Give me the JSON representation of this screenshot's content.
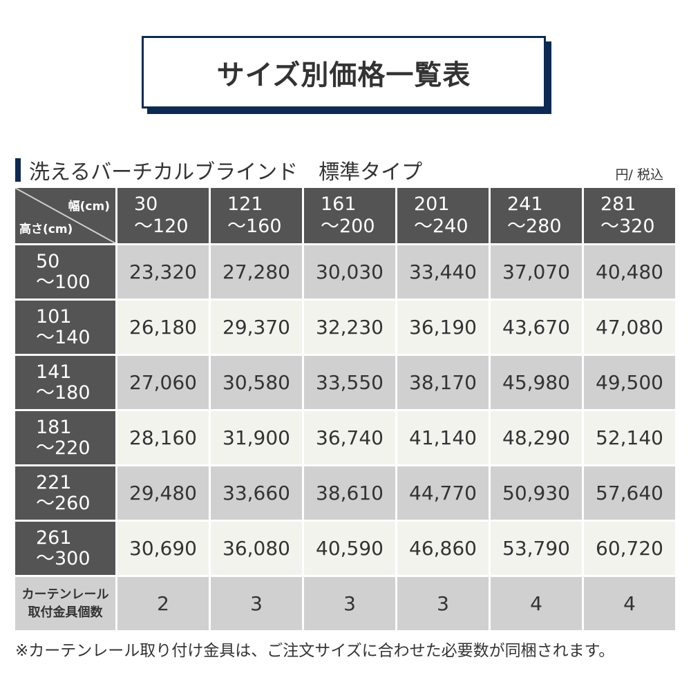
{
  "title": "サイズ別価格一覧表",
  "subtitle": "洗えるバーチカルブラインド　標準タイプ",
  "unit": "円/ 税込",
  "corner": {
    "width_label": "幅(cm)",
    "height_label": "高さ(cm)"
  },
  "columns": [
    [
      "30",
      "～120"
    ],
    [
      "121",
      "～160"
    ],
    [
      "161",
      "～200"
    ],
    [
      "201",
      "～240"
    ],
    [
      "241",
      "～280"
    ],
    [
      "281",
      "～320"
    ]
  ],
  "rows": [
    {
      "h": [
        "50",
        "～100"
      ],
      "prices": [
        "23,320",
        "27,280",
        "30,030",
        "33,440",
        "37,070",
        "40,480"
      ]
    },
    {
      "h": [
        "101",
        "～140"
      ],
      "prices": [
        "26,180",
        "29,370",
        "32,230",
        "36,190",
        "43,670",
        "47,080"
      ]
    },
    {
      "h": [
        "141",
        "～180"
      ],
      "prices": [
        "27,060",
        "30,580",
        "33,550",
        "38,170",
        "45,980",
        "49,500"
      ]
    },
    {
      "h": [
        "181",
        "～220"
      ],
      "prices": [
        "28,160",
        "31,900",
        "36,740",
        "41,140",
        "48,290",
        "52,140"
      ]
    },
    {
      "h": [
        "221",
        "～260"
      ],
      "prices": [
        "29,480",
        "33,660",
        "38,610",
        "44,770",
        "50,930",
        "57,640"
      ]
    },
    {
      "h": [
        "261",
        "～300"
      ],
      "prices": [
        "30,690",
        "36,080",
        "40,590",
        "46,860",
        "53,790",
        "60,720"
      ]
    }
  ],
  "footer": {
    "label": [
      "カーテンレール",
      "取付金具個数"
    ],
    "values": [
      "2",
      "3",
      "3",
      "3",
      "4",
      "4"
    ]
  },
  "note": "※カーテンレール取り付け金具は、ご注文サイズに合わせた必要数が同梱されます。",
  "colors": {
    "navy": "#0d2a52",
    "header": "#545454",
    "row_odd": "#d0d0d0",
    "row_even": "#f3f3ee"
  }
}
